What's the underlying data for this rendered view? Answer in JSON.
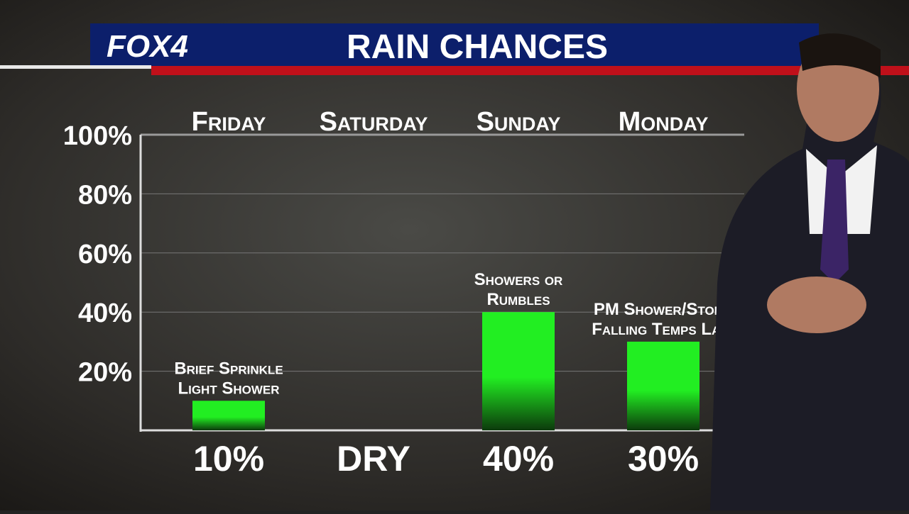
{
  "logo": "FOX4",
  "chart_data": {
    "type": "bar",
    "title": "RAIN CHANCES",
    "categories": [
      "Friday",
      "Saturday",
      "Sunday",
      "Monday"
    ],
    "values": [
      10,
      0,
      40,
      30
    ],
    "value_labels": [
      "10%",
      "DRY",
      "40%",
      "30%"
    ],
    "annotations": [
      [
        "Brief Sprinkle",
        "Light Shower"
      ],
      null,
      [
        "Showers or",
        "Rumbles"
      ],
      [
        "PM Shower/Storm",
        "Falling Temps Late"
      ]
    ],
    "color": "#22ee22",
    "ylim": [
      0,
      100
    ],
    "yticks": [
      {
        "value": 20,
        "label": "20%"
      },
      {
        "value": 40,
        "label": "40%"
      },
      {
        "value": 60,
        "label": "60%"
      },
      {
        "value": 80,
        "label": "80%"
      },
      {
        "value": 100,
        "label": "100%"
      }
    ],
    "grid": true
  }
}
